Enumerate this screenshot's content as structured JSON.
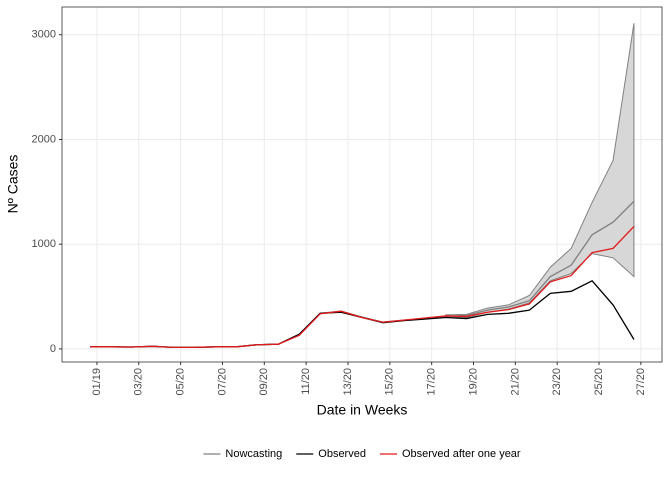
{
  "chart_data": {
    "type": "line",
    "x_label": "Date in Weeks",
    "y_label": "Nº Cases",
    "x": [
      0,
      1,
      2,
      3,
      4,
      5,
      6,
      7,
      8,
      9,
      10,
      11,
      12,
      13,
      14,
      15,
      16,
      17,
      18,
      19,
      20,
      21,
      22,
      23,
      24,
      25,
      26
    ],
    "xlim": [
      -1.34,
      27.34
    ],
    "xticks": [
      {
        "value": 0.33,
        "label": "01/19"
      },
      {
        "value": 2.33,
        "label": "03/20"
      },
      {
        "value": 4.33,
        "label": "05/20"
      },
      {
        "value": 6.33,
        "label": "07/20"
      },
      {
        "value": 8.33,
        "label": "09/20"
      },
      {
        "value": 10.33,
        "label": "11/20"
      },
      {
        "value": 12.33,
        "label": "13/20"
      },
      {
        "value": 14.33,
        "label": "15/20"
      },
      {
        "value": 16.33,
        "label": "17/20"
      },
      {
        "value": 18.33,
        "label": "19/20"
      },
      {
        "value": 20.33,
        "label": "21/20"
      },
      {
        "value": 22.33,
        "label": "23/20"
      },
      {
        "value": 24.33,
        "label": "25/20"
      },
      {
        "value": 26.33,
        "label": "27/20"
      }
    ],
    "ylim": [
      -125,
      3265
    ],
    "yticks": [
      0,
      1000,
      2000,
      3000
    ],
    "grid": true,
    "legend": "bottom",
    "band": {
      "color": "#d3d3d3",
      "lower": [
        null,
        null,
        null,
        null,
        null,
        null,
        null,
        null,
        null,
        null,
        null,
        null,
        null,
        null,
        null,
        null,
        null,
        310,
        300,
        350,
        380,
        440,
        650,
        720,
        910,
        870,
        690
      ],
      "upper": [
        null,
        null,
        null,
        null,
        null,
        null,
        null,
        null,
        null,
        null,
        null,
        null,
        null,
        null,
        null,
        null,
        null,
        325,
        330,
        390,
        420,
        510,
        780,
        960,
        1400,
        1800,
        3110
      ]
    },
    "series": [
      {
        "name": "Nowcasting",
        "color": "#808080",
        "values": [
          20,
          20,
          18,
          25,
          15,
          15,
          20,
          20,
          40,
          45,
          135,
          340,
          360,
          305,
          255,
          275,
          290,
          310,
          320,
          370,
          400,
          460,
          690,
          800,
          1090,
          1210,
          1410
        ]
      },
      {
        "name": "Observed",
        "color": "#000000",
        "values": [
          20,
          20,
          18,
          25,
          15,
          15,
          20,
          20,
          40,
          45,
          140,
          340,
          350,
          300,
          250,
          270,
          285,
          300,
          290,
          330,
          340,
          370,
          530,
          550,
          650,
          420,
          90
        ]
      },
      {
        "name": "Observed after one year",
        "color": "#e31a1c",
        "values": [
          20,
          20,
          18,
          25,
          15,
          15,
          20,
          20,
          40,
          45,
          130,
          335,
          360,
          300,
          255,
          275,
          295,
          315,
          310,
          350,
          375,
          430,
          640,
          700,
          920,
          960,
          1170
        ]
      }
    ]
  }
}
